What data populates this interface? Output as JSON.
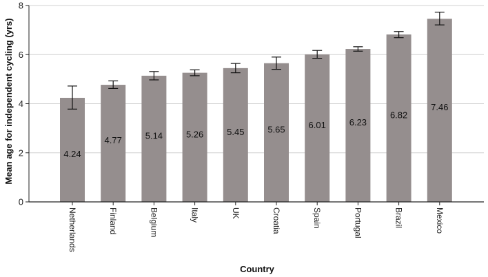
{
  "chart_data": {
    "type": "bar",
    "title": "",
    "xlabel": "Country",
    "ylabel": "Mean age for independent cycling (yrs)",
    "categories": [
      "Netherlands",
      "Finland",
      "Belgium",
      "Italy",
      "UK",
      "Croatia",
      "Spain",
      "Portugal",
      "Brazil",
      "Mexico"
    ],
    "values": [
      4.24,
      4.77,
      5.14,
      5.26,
      5.45,
      5.65,
      6.01,
      6.23,
      6.82,
      7.46
    ],
    "value_labels": [
      "4.24",
      "4.77",
      "5.14",
      "5.26",
      "5.45",
      "5.65",
      "6.01",
      "6.23",
      "6.82",
      "7.46"
    ],
    "error_low": [
      3.78,
      4.62,
      4.97,
      5.14,
      5.26,
      5.4,
      5.85,
      6.14,
      6.69,
      7.21
    ],
    "error_high": [
      4.72,
      4.93,
      5.31,
      5.38,
      5.64,
      5.9,
      6.17,
      6.32,
      6.94,
      7.73
    ],
    "ylim": [
      0,
      8
    ],
    "yticks": [
      0,
      2,
      4,
      6,
      8
    ],
    "ytick_labels": [
      "0",
      "2",
      "4",
      "6",
      "8"
    ],
    "grid": true,
    "bar_color": "#958e8e",
    "grid_color": "#d0d0d0"
  }
}
